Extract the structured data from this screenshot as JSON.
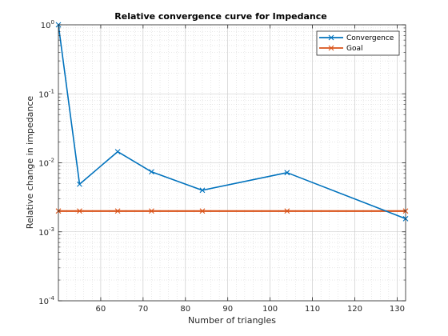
{
  "chart_data": {
    "type": "line",
    "title": "Relative convergence curve for Impedance",
    "xlabel": "Number of triangles",
    "ylabel": "Relative change in impedance",
    "xlim": [
      50,
      132
    ],
    "ylim": [
      0.0001,
      1
    ],
    "yscale": "log",
    "grid": true,
    "minor_grid": true,
    "legend_position": "top-right",
    "x_ticks": [
      60,
      70,
      80,
      90,
      100,
      110,
      120,
      130
    ],
    "x_tick_labels": [
      "60",
      "70",
      "80",
      "90",
      "100",
      "110",
      "120",
      "130"
    ],
    "y_ticks": [
      0.0001,
      0.001,
      0.01,
      0.1,
      1
    ],
    "y_tick_labels": [
      {
        "base": "10",
        "exp": "-4"
      },
      {
        "base": "10",
        "exp": "-3"
      },
      {
        "base": "10",
        "exp": "-2"
      },
      {
        "base": "10",
        "exp": "-1"
      },
      {
        "base": "10",
        "exp": "0"
      }
    ],
    "series": [
      {
        "name": "Convergence",
        "color": "#0072BD",
        "marker": "x",
        "x": [
          50,
          55,
          64,
          72,
          84,
          104,
          132
        ],
        "y": [
          1.0,
          0.0049,
          0.0145,
          0.0074,
          0.004,
          0.0072,
          0.00155
        ]
      },
      {
        "name": "Goal",
        "color": "#D95319",
        "marker": "x",
        "x": [
          50,
          55,
          64,
          72,
          84,
          104,
          132
        ],
        "y": [
          0.002,
          0.002,
          0.002,
          0.002,
          0.002,
          0.002,
          0.002
        ]
      }
    ]
  }
}
